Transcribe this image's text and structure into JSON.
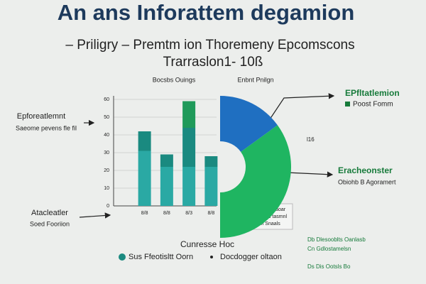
{
  "header": {
    "title": "An ans Inforattem degamion",
    "subtitle": "– Priligry – Premtm ion Thoremeny Epcomscons",
    "subtitle2": "Trarraslon1- 10ß"
  },
  "chart_data": [
    {
      "type": "bar",
      "title": "Bocsbs Ouings",
      "categories": [
        "8/8",
        "8/8",
        "8/3",
        "8/8"
      ],
      "series": [
        {
          "name": "Pomeotn Sluurt naoar",
          "color": "#2aa9a4",
          "values": [
            31,
            22,
            22,
            22
          ]
        },
        {
          "name": "Paoniaac Rebc tasmnl",
          "color": "#1a8a80",
          "values": [
            11,
            7,
            22,
            6
          ]
        },
        {
          "name": "Pnaotton cn Snaals",
          "color": "#1f9a5a",
          "values": [
            0,
            0,
            15,
            0
          ]
        }
      ],
      "ylim": [
        0,
        60
      ],
      "yticks": [
        0,
        10,
        20,
        30,
        40,
        50,
        60
      ],
      "grid": true
    },
    {
      "type": "pie",
      "title": "Enbnt Pnilgn",
      "values": [
        30,
        70
      ],
      "colors": [
        "#1f6fc1",
        "#1fb561"
      ],
      "value_labels": [
        "l16"
      ]
    }
  ],
  "annotations": {
    "left_top": [
      "Epforeatlemnt",
      "Saeome pevens fle fil"
    ],
    "left_bottom": [
      "Atacleatler",
      "Soed Fooriion"
    ],
    "right_top": [
      "EPfltatlemion",
      "Poost Fomm"
    ],
    "right_bottom": [
      "Eracheonster",
      "Obiohb B Agoramert"
    ],
    "footer_title": "Cunresse Hoc",
    "footer_legend": [
      "Sus Ffeotisltt Oorn",
      "Docdogger oltaon"
    ],
    "footer_notes": [
      "Db Dlesooblts Oanlasb",
      "Cn Gdlostamelsn",
      "Ds Dis Ootsls Bo"
    ]
  }
}
